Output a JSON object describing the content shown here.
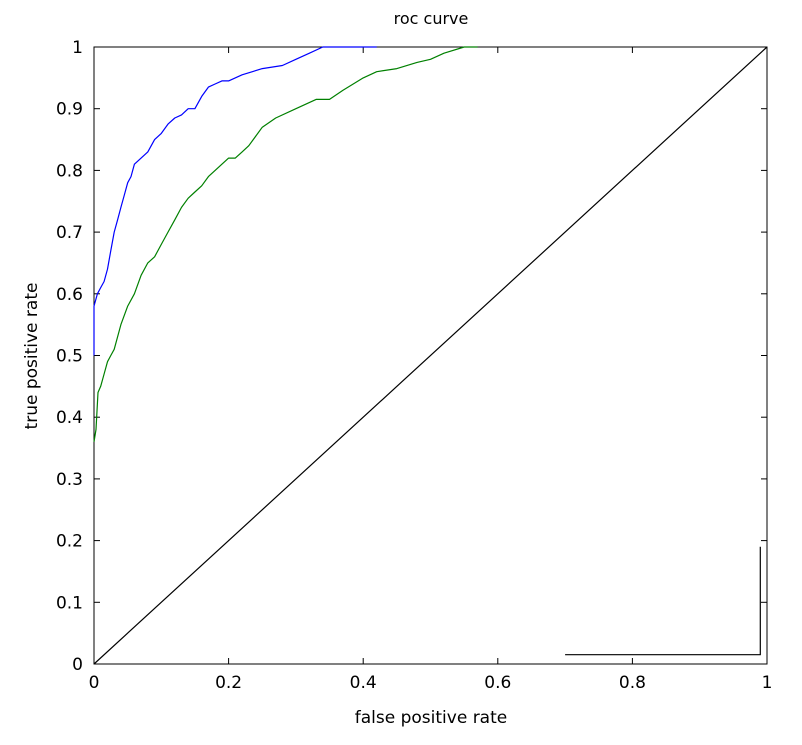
{
  "chart_data": {
    "type": "line",
    "title": "roc curve",
    "xlabel": "false positive rate",
    "ylabel": "true positive rate",
    "xlim": [
      0,
      1
    ],
    "ylim": [
      0,
      1
    ],
    "xticks": [
      "0",
      "0.2",
      "0.4",
      "0.6",
      "0.8",
      "1"
    ],
    "yticks": [
      "0",
      "0.1",
      "0.2",
      "0.3",
      "0.4",
      "0.5",
      "0.6",
      "0.7",
      "0.8",
      "0.9",
      "1"
    ],
    "xtick_values": [
      0,
      0.2,
      0.4,
      0.6,
      0.8,
      1
    ],
    "ytick_values": [
      0,
      0.1,
      0.2,
      0.3,
      0.4,
      0.5,
      0.6,
      0.7,
      0.8,
      0.9,
      1
    ],
    "grid": false,
    "series": [
      {
        "color": "#0000ff",
        "x": [
          0,
          0,
          0.005,
          0.01,
          0.015,
          0.02,
          0.025,
          0.03,
          0.035,
          0.04,
          0.045,
          0.05,
          0.055,
          0.06,
          0.07,
          0.08,
          0.09,
          0.1,
          0.11,
          0.12,
          0.13,
          0.14,
          0.15,
          0.16,
          0.17,
          0.18,
          0.19,
          0.2,
          0.22,
          0.25,
          0.28,
          0.3,
          0.32,
          0.34,
          0.36,
          0.38,
          0.4,
          0.42
        ],
        "y": [
          0.5,
          0.58,
          0.6,
          0.61,
          0.62,
          0.64,
          0.67,
          0.7,
          0.72,
          0.74,
          0.76,
          0.78,
          0.79,
          0.81,
          0.82,
          0.83,
          0.85,
          0.86,
          0.875,
          0.885,
          0.89,
          0.9,
          0.9,
          0.92,
          0.935,
          0.94,
          0.945,
          0.945,
          0.955,
          0.965,
          0.97,
          0.98,
          0.99,
          1.0,
          1.0,
          1.0,
          1.0,
          1.0
        ]
      },
      {
        "color": "#008000",
        "x": [
          0,
          0.003,
          0.006,
          0.01,
          0.015,
          0.02,
          0.025,
          0.03,
          0.04,
          0.05,
          0.06,
          0.07,
          0.08,
          0.09,
          0.1,
          0.11,
          0.12,
          0.13,
          0.14,
          0.15,
          0.16,
          0.17,
          0.18,
          0.19,
          0.2,
          0.21,
          0.22,
          0.23,
          0.24,
          0.25,
          0.27,
          0.3,
          0.33,
          0.35,
          0.37,
          0.4,
          0.42,
          0.45,
          0.48,
          0.5,
          0.52,
          0.55,
          0.57
        ],
        "y": [
          0.36,
          0.38,
          0.44,
          0.45,
          0.47,
          0.49,
          0.5,
          0.51,
          0.55,
          0.58,
          0.6,
          0.63,
          0.65,
          0.66,
          0.68,
          0.7,
          0.72,
          0.74,
          0.755,
          0.765,
          0.775,
          0.79,
          0.8,
          0.81,
          0.82,
          0.82,
          0.83,
          0.84,
          0.855,
          0.87,
          0.885,
          0.9,
          0.915,
          0.915,
          0.93,
          0.95,
          0.96,
          0.965,
          0.975,
          0.98,
          0.99,
          1.0,
          1.0
        ]
      },
      {
        "color": "#000000",
        "x": [
          0,
          1
        ],
        "y": [
          0,
          1
        ]
      },
      {
        "color": "#000000",
        "x": [
          0.7,
          0.99,
          0.99
        ],
        "y": [
          0.015,
          0.015,
          0.19
        ]
      }
    ]
  }
}
